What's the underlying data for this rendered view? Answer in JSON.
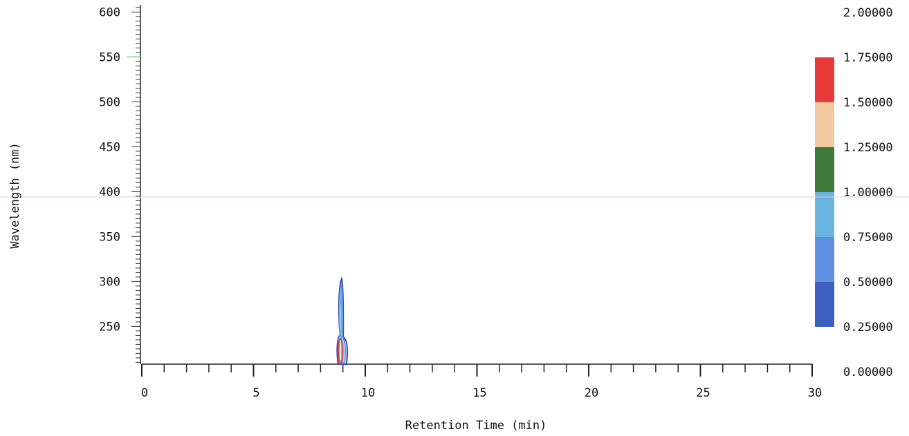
{
  "chart_data": {
    "type": "heatmap",
    "subtype": "contour",
    "xlabel": "Retention Time (min)",
    "ylabel": "Wavelength (nm)",
    "xlim": [
      0,
      30
    ],
    "ylim": [
      208,
      608
    ],
    "x_ticks": [
      0,
      5,
      10,
      15,
      20,
      25,
      30
    ],
    "x_tick_labels": [
      "0",
      "5",
      "10",
      "15",
      "20",
      "25",
      "30"
    ],
    "y_ticks": [
      250,
      300,
      350,
      400,
      450,
      500,
      550,
      600
    ],
    "y_tick_labels": [
      "250",
      "300",
      "350",
      "400",
      "450",
      "500",
      "550",
      "600"
    ],
    "colorbar": {
      "range": [
        0,
        2
      ],
      "tick_values": [
        0.0,
        0.25,
        0.5,
        0.75,
        1.0,
        1.25,
        1.5,
        1.75,
        2.0
      ],
      "tick_labels": [
        "0.00000",
        "0.25000",
        "0.50000",
        "0.75000",
        "1.00000",
        "1.25000",
        "1.50000",
        "1.75000",
        "2.00000"
      ],
      "bands": [
        {
          "from": 0.25,
          "to": 0.5,
          "color": "#3d5fbf"
        },
        {
          "from": 0.5,
          "to": 0.75,
          "color": "#5f8fe0"
        },
        {
          "from": 0.75,
          "to": 1.0,
          "color": "#6ab4e0"
        },
        {
          "from": 1.0,
          "to": 1.25,
          "color": "#3f7a3a"
        },
        {
          "from": 1.25,
          "to": 1.5,
          "color": "#f2c8a0"
        },
        {
          "from": 1.5,
          "to": 1.75,
          "color": "#e83a3a"
        }
      ]
    },
    "peak": {
      "retention_time_min": 8.9,
      "contours": [
        {
          "level": 0.25,
          "color": "#3048b0",
          "rt_min": 8.72,
          "rt_max": 9.22,
          "wl_min": 208,
          "wl_max": 303
        },
        {
          "level": 0.5,
          "color": "#5f8fe0",
          "rt_min": 8.78,
          "rt_max": 9.12,
          "wl_min": 210,
          "wl_max": 298
        },
        {
          "level": 0.75,
          "color": "#6ab4e0",
          "rt_min": 8.82,
          "rt_max": 9.02,
          "wl_min": 212,
          "wl_max": 290
        },
        {
          "level": 1.5,
          "color": "#e83a3a",
          "rt_min": 8.8,
          "rt_max": 8.97,
          "wl_min": 210,
          "wl_max": 236
        }
      ]
    },
    "grid": false,
    "legend": "colorbar-right"
  }
}
